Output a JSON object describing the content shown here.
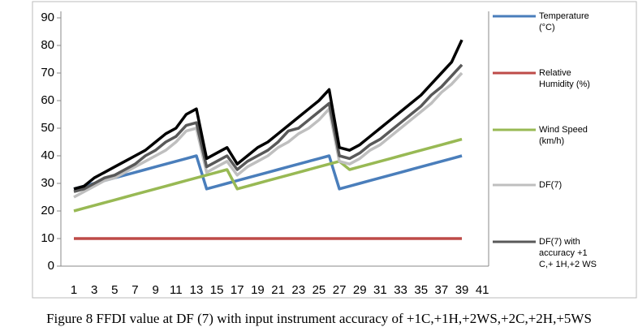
{
  "chart_data": {
    "type": "line",
    "caption": "Figure 8 FFDI value at DF (7) with input instrument accuracy of +1C,+1H,+2WS,+2C,+2H,+5WS",
    "categories": [
      1,
      null,
      3,
      null,
      5,
      null,
      7,
      null,
      9,
      null,
      11,
      null,
      13,
      null,
      15,
      null,
      17,
      null,
      19,
      null,
      21,
      null,
      23,
      null,
      25,
      null,
      27,
      null,
      29,
      null,
      31,
      null,
      33,
      null,
      35,
      null,
      37,
      null,
      39,
      null,
      41
    ],
    "ylim": [
      0,
      90
    ],
    "yticks": [
      0,
      10,
      20,
      30,
      40,
      50,
      60,
      70,
      80,
      90
    ],
    "series": [
      {
        "name": "Temperature (°C)",
        "color": "#4a7ebb",
        "values": [
          28,
          29,
          30,
          31,
          32,
          33,
          34,
          35,
          36,
          37,
          38,
          39,
          40,
          28,
          29,
          30,
          31,
          32,
          33,
          34,
          35,
          36,
          37,
          38,
          39,
          40,
          28,
          29,
          30,
          31,
          32,
          33,
          34,
          35,
          36,
          37,
          38,
          39,
          40,
          null,
          null
        ]
      },
      {
        "name": "Relative Humidity (%)",
        "color": "#be4b48",
        "values": [
          10,
          10,
          10,
          10,
          10,
          10,
          10,
          10,
          10,
          10,
          10,
          10,
          10,
          10,
          10,
          10,
          10,
          10,
          10,
          10,
          10,
          10,
          10,
          10,
          10,
          10,
          10,
          10,
          10,
          10,
          10,
          10,
          10,
          10,
          10,
          10,
          10,
          10,
          10,
          null,
          null
        ]
      },
      {
        "name": "Wind Speed (km/h)",
        "color": "#98b954",
        "values": [
          20,
          21,
          22,
          23,
          24,
          25,
          26,
          27,
          28,
          29,
          30,
          31,
          32,
          33,
          34,
          35,
          28,
          29,
          30,
          31,
          32,
          33,
          34,
          35,
          36,
          37,
          38,
          35,
          36,
          37,
          38,
          39,
          40,
          41,
          42,
          43,
          44,
          45,
          46,
          null,
          null
        ]
      },
      {
        "name": "DF(7)",
        "color": "#bfbfbf",
        "values": [
          25,
          27,
          29,
          31,
          32,
          34,
          36,
          38,
          40,
          42,
          45,
          49,
          50,
          34,
          36,
          38,
          33,
          36,
          38,
          40,
          43,
          45,
          48,
          50,
          53,
          57,
          38,
          37,
          39,
          42,
          44,
          47,
          50,
          53,
          56,
          59,
          63,
          66,
          70,
          null,
          null
        ]
      },
      {
        "name": "DF(7) with accuracy +1 C,+ 1H,+2 WS",
        "color": "#595959",
        "values": [
          27,
          28,
          30,
          32,
          33,
          35,
          37,
          40,
          42,
          45,
          47,
          51,
          52,
          36,
          38,
          40,
          35,
          38,
          40,
          42,
          45,
          49,
          50,
          53,
          56,
          59,
          40,
          39,
          41,
          44,
          46,
          49,
          52,
          55,
          58,
          62,
          65,
          69,
          73,
          null,
          null
        ]
      },
      {
        "color": "#000000",
        "values": [
          28,
          29,
          32,
          34,
          36,
          38,
          40,
          42,
          45,
          48,
          50,
          55,
          57,
          39,
          41,
          43,
          37,
          40,
          43,
          45,
          48,
          51,
          54,
          57,
          60,
          64,
          43,
          42,
          44,
          47,
          50,
          53,
          56,
          59,
          62,
          66,
          70,
          74,
          82,
          null,
          null
        ]
      }
    ]
  }
}
